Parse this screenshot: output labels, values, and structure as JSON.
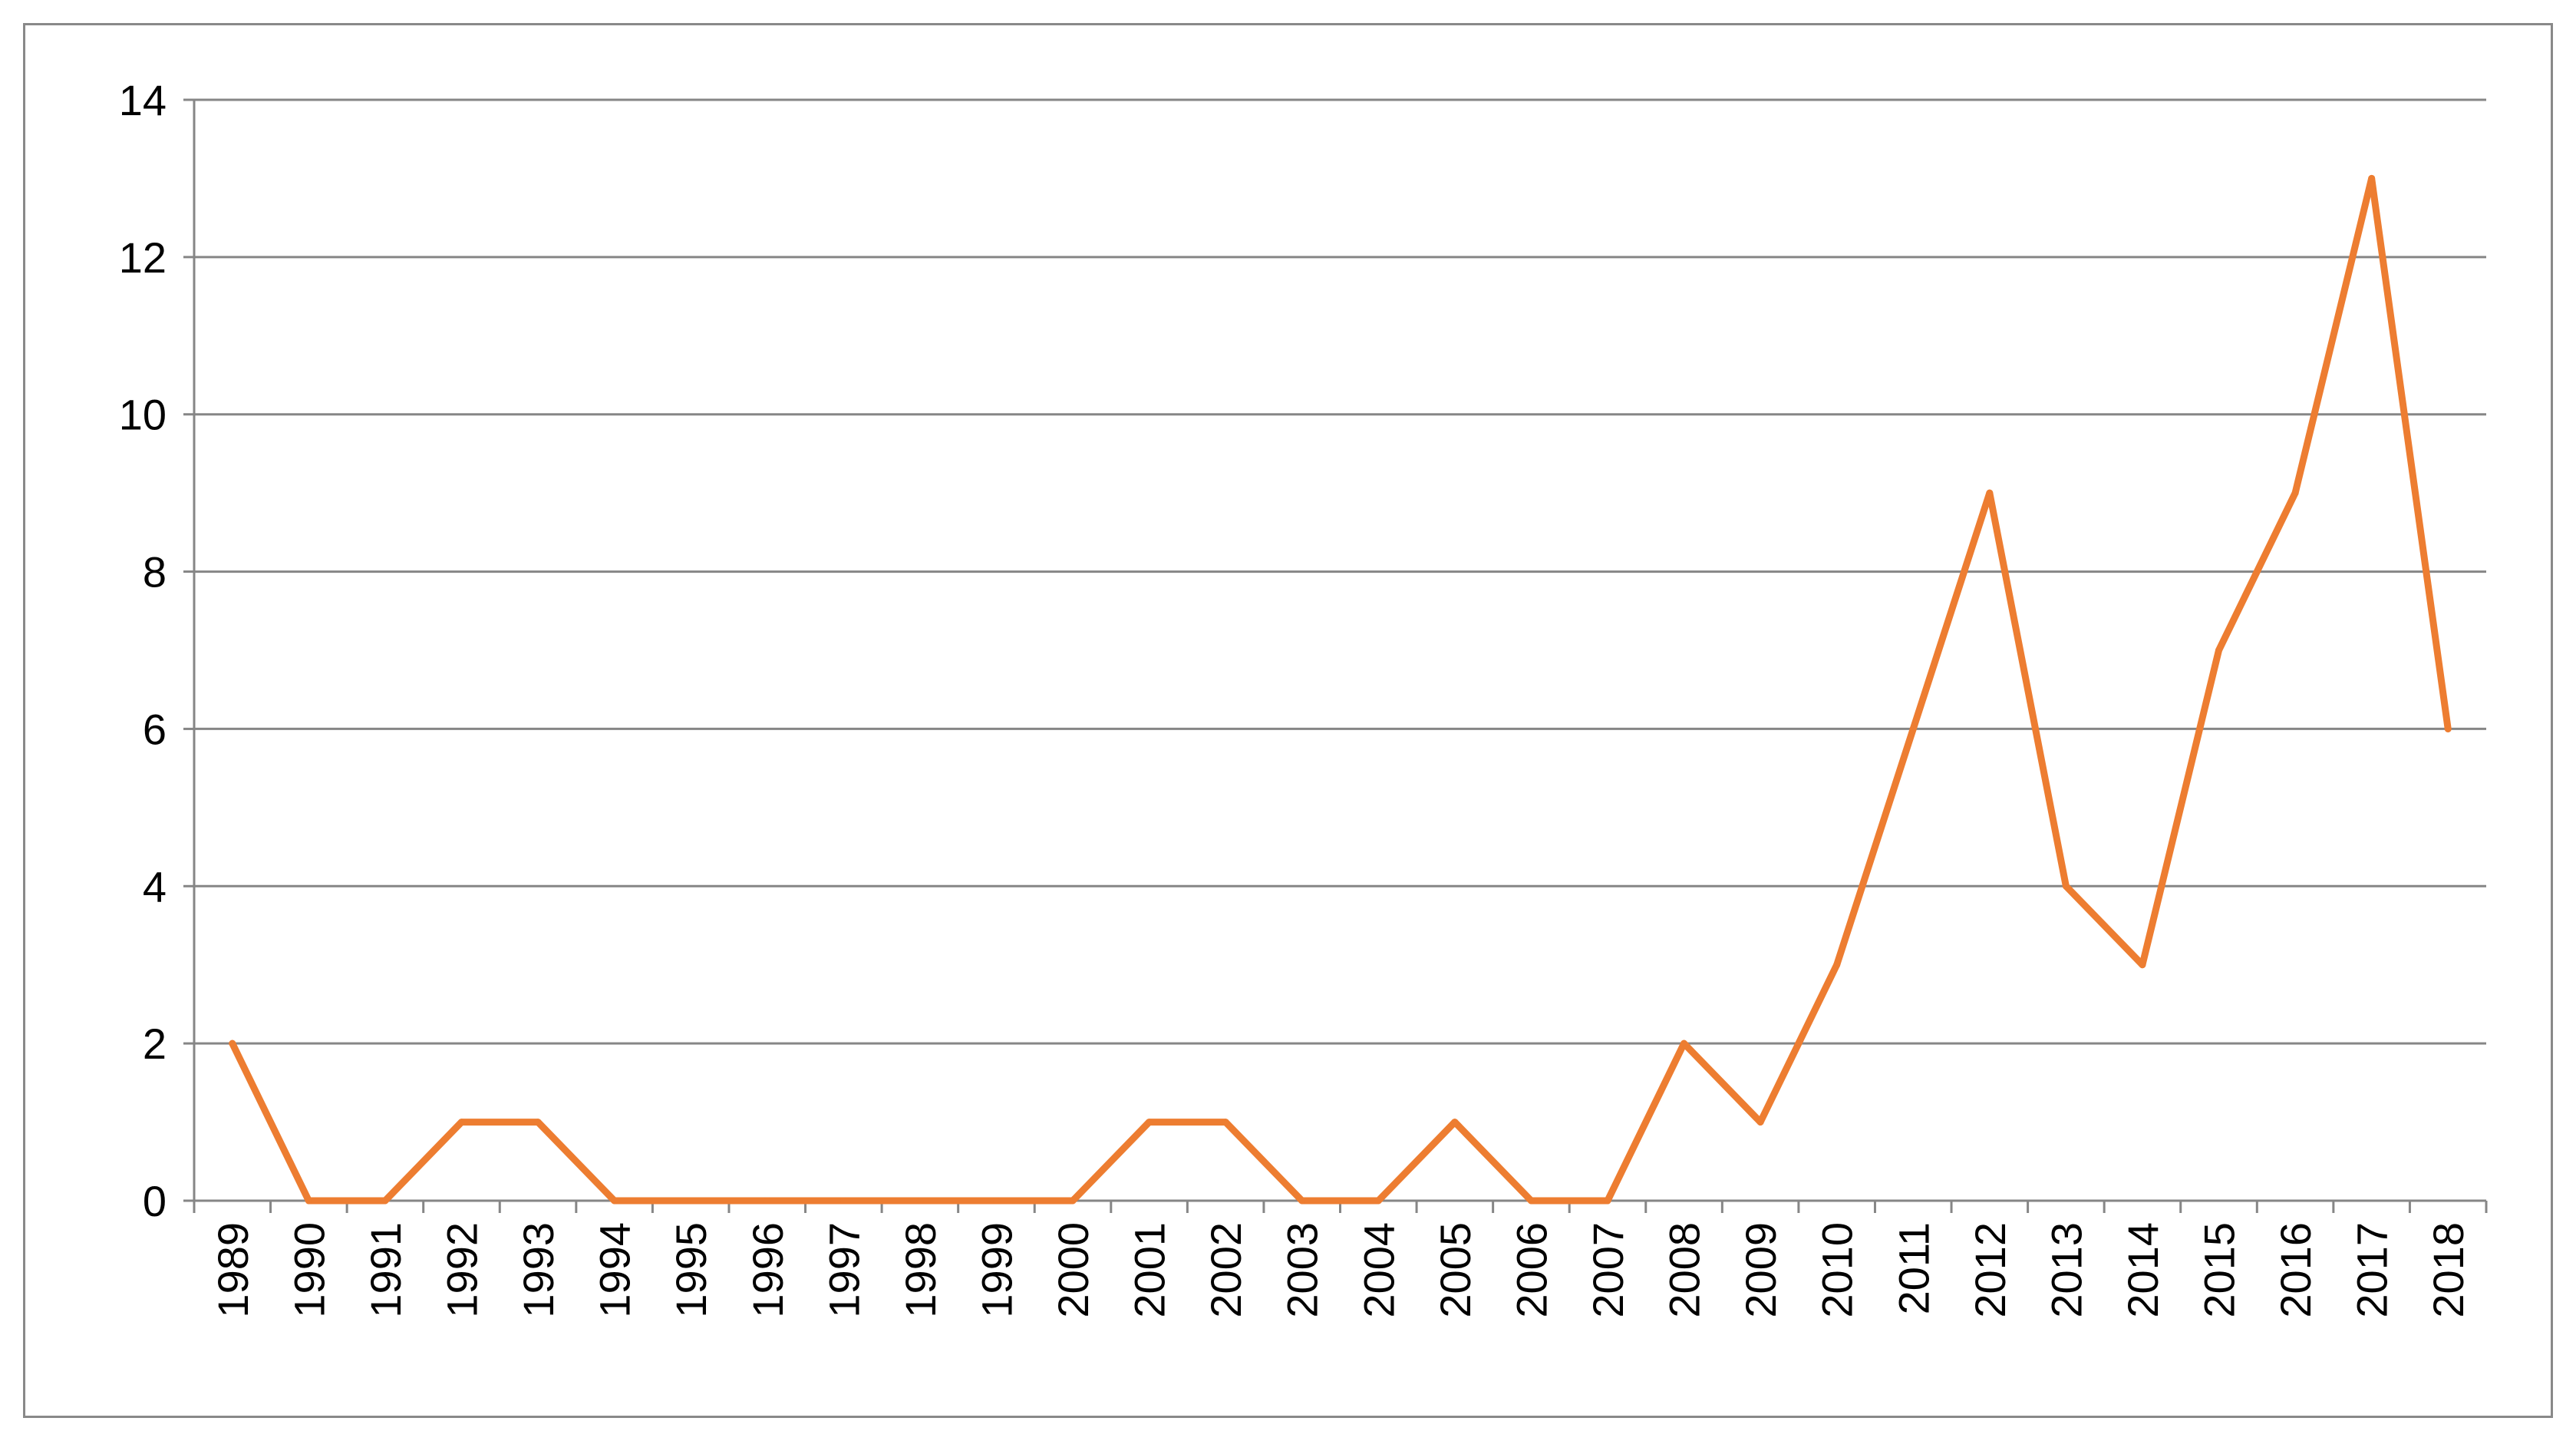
{
  "chart_data": {
    "type": "line",
    "title": "",
    "xlabel": "",
    "ylabel": "",
    "ylim": [
      0,
      14
    ],
    "yticks": [
      0,
      2,
      4,
      6,
      8,
      10,
      12,
      14
    ],
    "ytick_labels": [
      "0",
      "2",
      "4",
      "6",
      "8",
      "10",
      "12",
      "14"
    ],
    "grid": "horizontal",
    "legend": "none",
    "categories": [
      "1989",
      "1990",
      "1991",
      "1992",
      "1993",
      "1994",
      "1995",
      "1996",
      "1997",
      "1998",
      "1999",
      "2000",
      "2001",
      "2002",
      "2003",
      "2004",
      "2005",
      "2006",
      "2007",
      "2008",
      "2009",
      "2010",
      "2011",
      "2012",
      "2013",
      "2014",
      "2015",
      "2016",
      "2017",
      "2018"
    ],
    "series": [
      {
        "values": [
          2,
          0,
          0,
          1,
          1,
          0,
          0,
          0,
          0,
          0,
          0,
          0,
          1,
          1,
          0,
          0,
          1,
          0,
          0,
          2,
          1,
          3,
          6,
          9,
          4,
          3,
          7,
          9,
          13,
          6
        ],
        "color": "#ed7d31"
      }
    ],
    "colors": {
      "grid": "#868686",
      "axis": "#868686",
      "frame": "#898989"
    }
  }
}
